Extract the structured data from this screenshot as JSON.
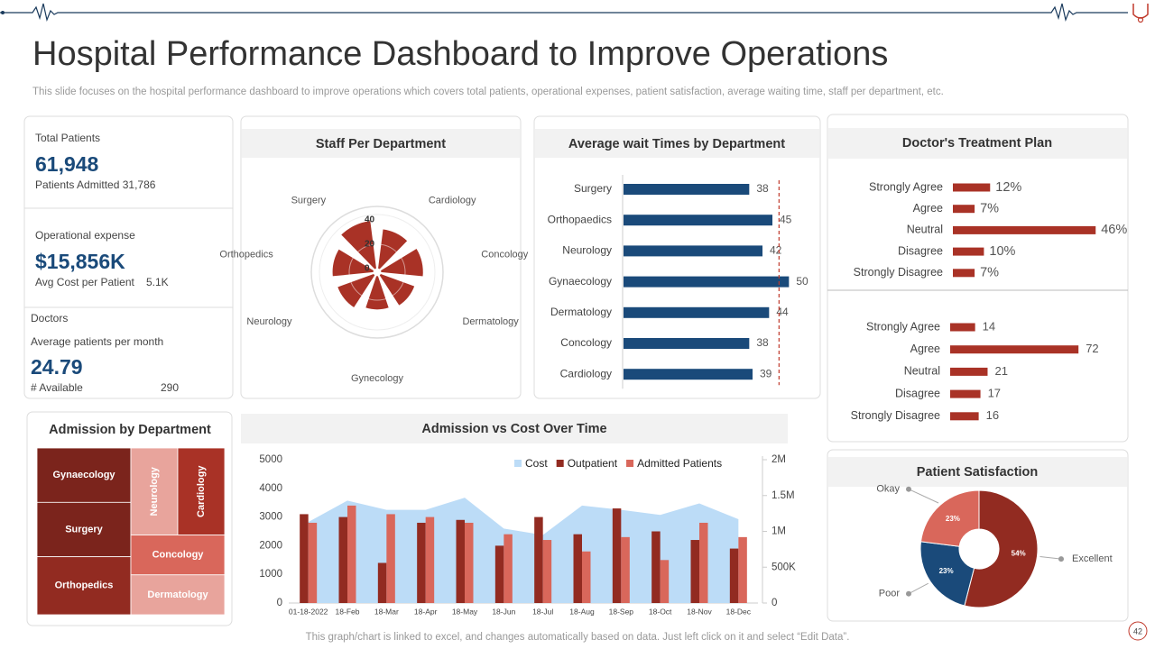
{
  "header": {
    "title": "Hospital Performance Dashboard to Improve Operations",
    "subtitle": "This slide focuses on the hospital performance dashboard to improve operations which covers total patients, operational expenses, patient satisfaction, average waiting time, staff per department, etc.",
    "footnote": "This graph/chart is linked to excel, and changes automatically based on data. Just left click on it and select “Edit Data”.",
    "page_number": "42"
  },
  "kpis": {
    "total_patients": {
      "label": "Total Patients",
      "value": "61,948",
      "detail": "Patients Admitted 31,786"
    },
    "operational_expense": {
      "label": "Operational expense",
      "value": "$15,856K",
      "detail_label": "Avg  Cost per Patient",
      "detail_value": "5.1K"
    },
    "doctors": {
      "label": "Doctors",
      "metric_label": "Average patients per month",
      "value": "24.79",
      "available_label": "# Available",
      "available_value": "290"
    }
  },
  "chart_data": [
    {
      "type": "polar_bar",
      "title": "Staff Per Department",
      "categories": [
        "Cardiology",
        "Concology",
        "Dermatology",
        "Gynecology",
        "Neurology",
        "Orthopedics",
        "Surgery"
      ],
      "values": [
        33,
        35,
        30,
        28,
        32,
        34,
        40
      ],
      "color": "#a93226",
      "rlim": [
        0,
        40
      ],
      "rticks": [
        0,
        20,
        40
      ]
    },
    {
      "type": "hbar",
      "title": "Average wait Times by Department",
      "categories": [
        "Surgery",
        "Orthopaedics",
        "Neurology",
        "Gynaecology",
        "Dermatology",
        "Concology",
        "Cardiology"
      ],
      "values": [
        38,
        45,
        42,
        50,
        44,
        38,
        39
      ],
      "color": "#1a4a7a",
      "xlim": [
        0,
        51
      ],
      "reference_line": 47,
      "reference_color": "#c0392b"
    },
    {
      "type": "hbar",
      "title": "Doctor's Treatment Plan",
      "categories": [
        "Strongly Agree",
        "Agree",
        "Neutral",
        "Disagree",
        "Strongly Disagree"
      ],
      "values": [
        12,
        7,
        46,
        10,
        7
      ],
      "value_labels": [
        "12%",
        "7%",
        "46%",
        "10%",
        "7%"
      ],
      "color": "#a93226",
      "xlim": [
        0,
        50
      ]
    },
    {
      "type": "hbar",
      "categories": [
        "Strongly Agree",
        "Agree",
        "Neutral",
        "Disagree",
        "Strongly Disagree"
      ],
      "values": [
        14,
        72,
        21,
        17,
        16
      ],
      "color": "#a93226",
      "xlim": [
        0,
        80
      ]
    },
    {
      "type": "treemap",
      "title": "Admission  by Department",
      "categories": [
        "Gynaecology",
        "Surgery",
        "Orthopedics",
        "Neurology",
        "Cardiology",
        "Concology",
        "Dermatology"
      ],
      "values": [
        15,
        15,
        16,
        12,
        12,
        11,
        11
      ],
      "colors": [
        "#7b241c",
        "#7b241c",
        "#922b21",
        "#e8a49c",
        "#a93226",
        "#d9675b",
        "#e8a49c"
      ]
    },
    {
      "type": "combo",
      "title": "Admission  vs Cost Over Time",
      "categories": [
        "01-18-2022",
        "18-Feb",
        "18-Mar",
        "18-Apr",
        "18-May",
        "18-Jun",
        "18-Jul",
        "18-Aug",
        "18-Sep",
        "18-Oct",
        "18-Nov",
        "18-Dec"
      ],
      "series": [
        {
          "name": "Cost",
          "color": "#bcdcf7",
          "kind": "area",
          "axis": "y2",
          "values": [
            1130000,
            1430000,
            1300000,
            1300000,
            1470000,
            1040000,
            950000,
            1360000,
            1300000,
            1230000,
            1390000,
            1170000
          ]
        },
        {
          "name": "Outpatient",
          "color": "#922b21",
          "kind": "bar",
          "values": [
            3100,
            3000,
            1400,
            2800,
            2900,
            2000,
            3000,
            2400,
            3300,
            2500,
            2200,
            1900
          ]
        },
        {
          "name": "Admitted Patients",
          "color": "#d9675b",
          "kind": "bar",
          "values": [
            2800,
            3400,
            3100,
            3000,
            2800,
            2400,
            2200,
            1800,
            2300,
            1500,
            2800,
            2300
          ]
        }
      ],
      "ylim": [
        0,
        5000
      ],
      "yticks": [
        0,
        1000,
        2000,
        3000,
        4000,
        5000
      ],
      "y2lim": [
        0,
        2000000
      ],
      "y2ticks": [
        0,
        {
          "value": 500000,
          "label": "500K"
        },
        {
          "value": 1000000,
          "label": "1M"
        },
        {
          "value": 1500000,
          "label": "1.5M"
        },
        {
          "value": 2000000,
          "label": "2M"
        }
      ],
      "legend": "top-right"
    },
    {
      "type": "donut",
      "title": "Patient Satisfaction",
      "categories": [
        "Excellent",
        "Poor",
        "Okay"
      ],
      "values": [
        54,
        23,
        23
      ],
      "value_labels": [
        "54%",
        "23%",
        "23%"
      ],
      "colors": [
        "#922b21",
        "#1a4a7a",
        "#d9675b"
      ]
    }
  ]
}
